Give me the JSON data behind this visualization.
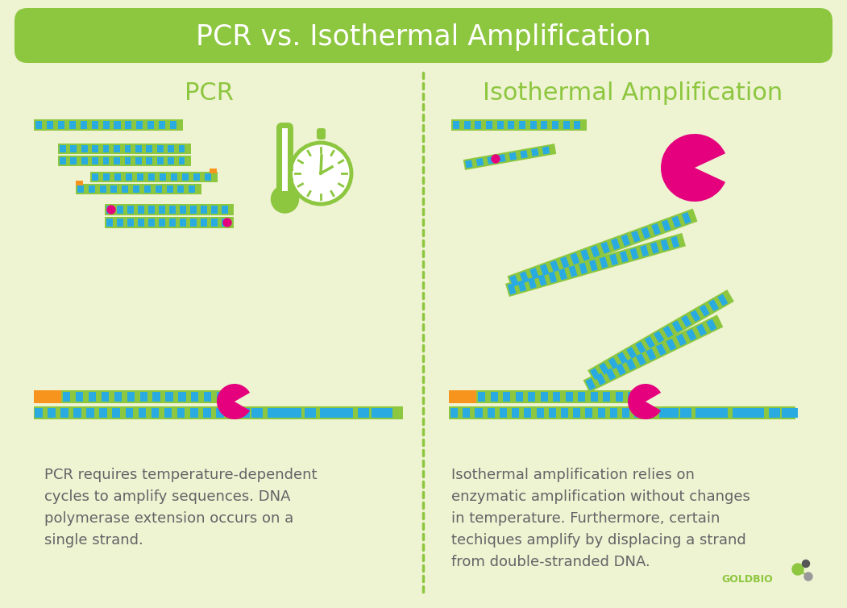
{
  "title": "PCR vs. Isothermal Amplification",
  "bg_color": "#eef3d2",
  "title_bg": "#8dc63f",
  "title_color": "#ffffff",
  "left_header": "PCR",
  "right_header": "Isothermal Amplification",
  "header_color": "#8dc63f",
  "green": "#8dc63f",
  "blue": "#29abe2",
  "white": "#ffffff",
  "orange": "#f7941d",
  "magenta": "#e5007d",
  "dark_gray": "#636466",
  "left_text_line1": "PCR requires temperature-dependent",
  "left_text_line2": "cycles to amplify sequences. DNA",
  "left_text_line3": "polymerase extension occurs on a",
  "left_text_line4": "single strand.",
  "right_text_line1": "Isothermal amplification relies on",
  "right_text_line2": "enzymatic amplification without changes",
  "right_text_line3": "in temperature. Furthermore, certain",
  "right_text_line4": "techiques amplify by displacing a strand",
  "right_text_line5": "from double-stranded DNA.",
  "goldbio_text": "GOLDBIO",
  "goldbio_green": "#8dc63f",
  "goldbio_gray": "#999999",
  "goldbio_dark": "#555555"
}
